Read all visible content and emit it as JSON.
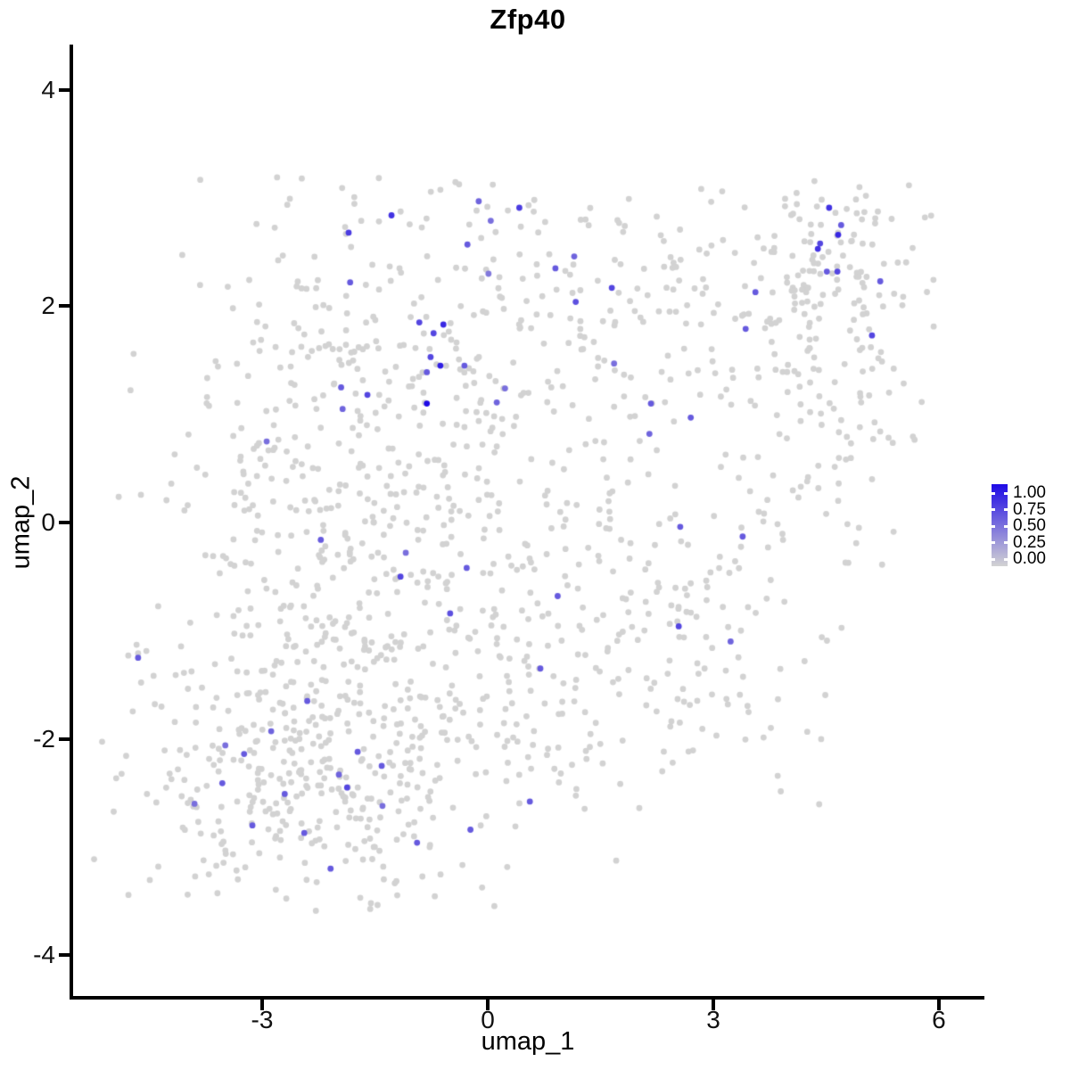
{
  "title": "Zfp40",
  "x_axis": {
    "title": "umap_1",
    "tick_labels": [
      "-3",
      "0",
      "3",
      "6"
    ],
    "tick_values": [
      -3,
      0,
      3,
      6
    ]
  },
  "y_axis": {
    "title": "umap_2",
    "tick_labels": [
      "4",
      "2",
      "0",
      "-2",
      "-4"
    ],
    "tick_values": [
      4,
      2,
      0,
      -2,
      -4
    ]
  },
  "legend": {
    "tick_labels": [
      "1.00",
      "0.75",
      "0.50",
      "0.25",
      "0.00"
    ],
    "tick_values": [
      1,
      0.75,
      0.5,
      0.25,
      0
    ]
  },
  "chart_data": {
    "type": "scatter",
    "title": "Zfp40",
    "xlabel": "umap_1",
    "ylabel": "umap_2",
    "axis_x_range": [
      -5.55,
      6.6
    ],
    "axis_y_range": [
      -4.4,
      4.4
    ],
    "grid": false,
    "legend_position": "right",
    "color_scale": {
      "low": "#D3D3D3",
      "high": "#1E0AE6",
      "background_point": "#D2D2D2"
    },
    "seed": 42,
    "point_bounds": {
      "x": [
        -5.35,
        6.45
      ],
      "y": [
        -3.65,
        3.2
      ]
    },
    "background_clusters": [
      {
        "count": 330,
        "cx": -1.51,
        "cy": 1.29,
        "sx": 1.5,
        "sy": 0.95
      },
      {
        "count": 120,
        "cx": 1.7,
        "cy": 2.19,
        "sx": 1.25,
        "sy": 0.5
      },
      {
        "count": 130,
        "cx": 4.54,
        "cy": 2.36,
        "sx": 0.62,
        "sy": 0.52
      },
      {
        "count": 100,
        "cx": 4.25,
        "cy": 0.79,
        "sx": 0.8,
        "sy": 0.8
      },
      {
        "count": 160,
        "cx": 0.75,
        "cy": -0.2,
        "sx": 1.6,
        "sy": 0.85
      },
      {
        "count": 110,
        "cx": 2.53,
        "cy": -1.27,
        "sx": 0.95,
        "sy": 0.7
      },
      {
        "count": 390,
        "cx": -2.34,
        "cy": -2.42,
        "sx": 1.25,
        "sy": 0.85
      },
      {
        "count": 140,
        "cx": -0.79,
        "cy": -1.52,
        "sx": 1.15,
        "sy": 0.7
      },
      {
        "count": 90,
        "cx": -2.57,
        "cy": -0.45,
        "sx": 0.75,
        "sy": 0.85
      }
    ],
    "outlier_points": [
      [
        -4.67,
        -1.13
      ],
      [
        -4.78,
        -1.23
      ],
      [
        -4.65,
        -1.21
      ],
      [
        -4.61,
        -1.48
      ],
      [
        -4.15,
        -1.41
      ],
      [
        -4.04,
        -1.39
      ]
    ],
    "highlight_points": [
      [
        -0.12,
        2.97,
        0.55
      ],
      [
        0.42,
        2.91,
        0.75
      ],
      [
        -1.28,
        2.84,
        0.8
      ],
      [
        0.04,
        2.79,
        0.5
      ],
      [
        -1.85,
        2.68,
        0.75
      ],
      [
        -0.27,
        2.57,
        0.6
      ],
      [
        1.15,
        2.46,
        0.55
      ],
      [
        0.9,
        2.35,
        0.6
      ],
      [
        0.01,
        2.3,
        0.45
      ],
      [
        -1.83,
        2.22,
        0.6
      ],
      [
        1.17,
        2.04,
        0.65
      ],
      [
        1.65,
        2.17,
        0.7
      ],
      [
        -0.91,
        1.85,
        0.7
      ],
      [
        -0.59,
        1.83,
        0.85
      ],
      [
        -0.72,
        1.75,
        0.7
      ],
      [
        -0.76,
        1.53,
        0.7
      ],
      [
        -0.63,
        1.45,
        0.9
      ],
      [
        -0.31,
        1.45,
        0.6
      ],
      [
        -0.81,
        1.39,
        0.6
      ],
      [
        -0.81,
        1.1,
        1.0
      ],
      [
        0.23,
        1.24,
        0.5
      ],
      [
        0.12,
        1.11,
        0.55
      ],
      [
        -1.95,
        1.25,
        0.6
      ],
      [
        -1.6,
        1.18,
        0.7
      ],
      [
        -1.93,
        1.05,
        0.55
      ],
      [
        4.54,
        2.91,
        0.8
      ],
      [
        4.7,
        2.75,
        0.6
      ],
      [
        4.66,
        2.66,
        0.85
      ],
      [
        4.42,
        2.58,
        0.7
      ],
      [
        4.39,
        2.53,
        0.8
      ],
      [
        4.51,
        2.32,
        0.6
      ],
      [
        4.65,
        2.32,
        0.7
      ],
      [
        5.22,
        2.23,
        0.6
      ],
      [
        3.56,
        2.13,
        0.6
      ],
      [
        3.43,
        1.79,
        0.6
      ],
      [
        5.11,
        1.73,
        0.7
      ],
      [
        1.68,
        1.47,
        0.5
      ],
      [
        2.17,
        1.1,
        0.6
      ],
      [
        2.15,
        0.82,
        0.55
      ],
      [
        2.7,
        0.97,
        0.6
      ],
      [
        -2.94,
        0.75,
        0.5
      ],
      [
        -2.22,
        -0.16,
        0.6
      ],
      [
        -1.09,
        -0.28,
        0.5
      ],
      [
        -1.16,
        -0.5,
        0.7
      ],
      [
        -0.28,
        -0.42,
        0.6
      ],
      [
        -0.5,
        -0.84,
        0.65
      ],
      [
        2.56,
        -0.04,
        0.6
      ],
      [
        3.39,
        -0.13,
        0.6
      ],
      [
        0.93,
        -0.68,
        0.6
      ],
      [
        2.54,
        -0.96,
        0.7
      ],
      [
        3.23,
        -1.1,
        0.55
      ],
      [
        0.7,
        -1.35,
        0.6
      ],
      [
        -4.65,
        -1.25,
        0.6
      ],
      [
        -2.4,
        -1.65,
        0.6
      ],
      [
        -2.88,
        -1.93,
        0.55
      ],
      [
        -3.49,
        -2.06,
        0.5
      ],
      [
        -3.24,
        -2.14,
        0.6
      ],
      [
        -1.73,
        -2.12,
        0.6
      ],
      [
        -1.41,
        -2.25,
        0.6
      ],
      [
        -1.98,
        -2.33,
        0.55
      ],
      [
        -3.53,
        -2.41,
        0.6
      ],
      [
        -1.87,
        -2.45,
        0.7
      ],
      [
        -2.7,
        -2.51,
        0.6
      ],
      [
        -3.9,
        -2.6,
        0.5
      ],
      [
        -1.4,
        -2.62,
        0.5
      ],
      [
        -3.13,
        -2.8,
        0.6
      ],
      [
        -2.44,
        -2.87,
        0.6
      ],
      [
        -2.09,
        -3.2,
        0.6
      ],
      [
        -0.23,
        -2.84,
        0.6
      ],
      [
        -0.94,
        -2.96,
        0.6
      ],
      [
        0.56,
        -2.58,
        0.6
      ]
    ]
  }
}
